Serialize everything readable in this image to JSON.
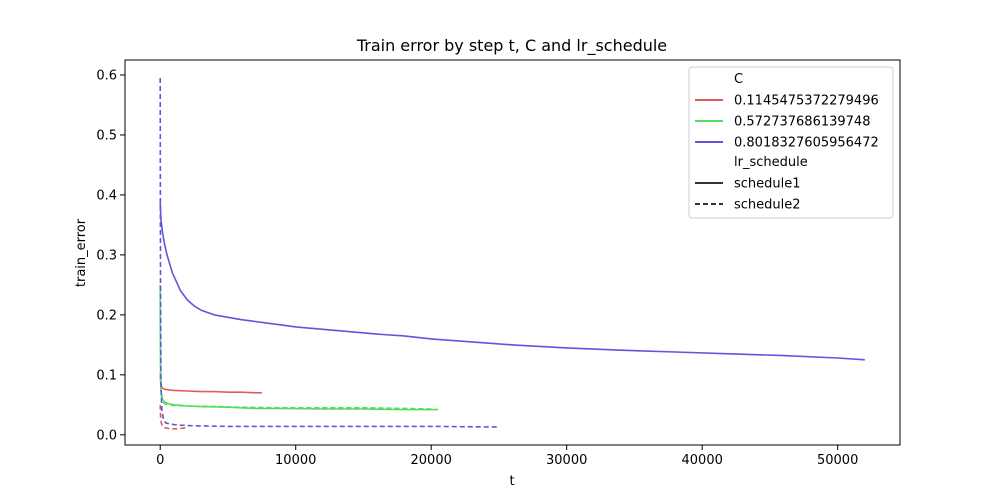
{
  "chart_data": {
    "type": "line",
    "title": "Train error by step t, C and lr_schedule",
    "xlabel": "t",
    "ylabel": "train_error",
    "xlim": [
      -2600,
      54600
    ],
    "ylim": [
      -0.017,
      0.625
    ],
    "x_ticks": [
      0,
      10000,
      20000,
      30000,
      40000,
      50000
    ],
    "y_ticks": [
      0.0,
      0.1,
      0.2,
      0.3,
      0.4,
      0.5,
      0.6
    ],
    "x_tick_labels": [
      "0",
      "10000",
      "20000",
      "30000",
      "40000",
      "50000"
    ],
    "y_tick_labels": [
      "0.0",
      "0.1",
      "0.2",
      "0.3",
      "0.4",
      "0.5",
      "0.6"
    ],
    "grid": false,
    "legend_placement": "top-right",
    "legend": {
      "hue_title": "C",
      "style_title": "lr_schedule",
      "hue_entries": [
        {
          "label": "0.1145475372279496",
          "color": "#db5f57"
        },
        {
          "label": "0.572737686139748",
          "color": "#57db5f"
        },
        {
          "label": "0.8018327605956472",
          "color": "#5f57db"
        }
      ],
      "style_entries": [
        {
          "label": "schedule1",
          "dash": "solid",
          "color": "#333333"
        },
        {
          "label": "schedule2",
          "dash": "dashed",
          "color": "#333333"
        }
      ]
    },
    "series": [
      {
        "C": "0.1145475372279496",
        "lr_schedule": "schedule1",
        "color": "#db5f57",
        "dash": "solid",
        "x": [
          0,
          30,
          80,
          150,
          300,
          600,
          1000,
          2000,
          3000,
          4000,
          5000,
          6000,
          7000,
          7500
        ],
        "y": [
          0.1,
          0.09,
          0.082,
          0.078,
          0.076,
          0.075,
          0.074,
          0.073,
          0.072,
          0.072,
          0.071,
          0.071,
          0.07,
          0.07
        ]
      },
      {
        "C": "0.1145475372279496",
        "lr_schedule": "schedule2",
        "color": "#db5f57",
        "dash": "dashed",
        "x": [
          0,
          30,
          80,
          150,
          300,
          500,
          800,
          1200,
          1700,
          2000
        ],
        "y": [
          0.05,
          0.03,
          0.02,
          0.015,
          0.012,
          0.011,
          0.01,
          0.01,
          0.011,
          0.013
        ]
      },
      {
        "C": "0.572737686139748",
        "lr_schedule": "schedule1",
        "color": "#57db5f",
        "dash": "solid",
        "x": [
          0,
          30,
          80,
          150,
          300,
          600,
          1000,
          2000,
          3000,
          5000,
          7000,
          9000,
          12000,
          15000,
          18000,
          20500
        ],
        "y": [
          0.25,
          0.1,
          0.07,
          0.06,
          0.055,
          0.052,
          0.05,
          0.048,
          0.047,
          0.046,
          0.044,
          0.044,
          0.043,
          0.043,
          0.042,
          0.042
        ]
      },
      {
        "C": "0.572737686139748",
        "lr_schedule": "schedule2",
        "color": "#57db5f",
        "dash": "dashed",
        "x": [
          0,
          30,
          80,
          150,
          300,
          600,
          1000,
          2000,
          4000,
          6000,
          9000,
          12000,
          15000,
          18000,
          20000
        ],
        "y": [
          0.2,
          0.09,
          0.065,
          0.055,
          0.052,
          0.05,
          0.049,
          0.048,
          0.047,
          0.046,
          0.045,
          0.045,
          0.045,
          0.044,
          0.043
        ]
      },
      {
        "C": "0.8018327605956472",
        "lr_schedule": "schedule1",
        "color": "#5f57db",
        "dash": "solid",
        "x": [
          0,
          50,
          150,
          300,
          500,
          700,
          900,
          1200,
          1500,
          2000,
          2500,
          3000,
          3500,
          4000,
          5000,
          6000,
          7000,
          8000,
          9000,
          10000,
          12000,
          14000,
          16000,
          18000,
          20000,
          23000,
          26000,
          30000,
          34000,
          38000,
          42000,
          46000,
          50000,
          52000
        ],
        "y": [
          0.39,
          0.36,
          0.34,
          0.32,
          0.3,
          0.285,
          0.27,
          0.255,
          0.24,
          0.225,
          0.215,
          0.208,
          0.204,
          0.2,
          0.196,
          0.192,
          0.189,
          0.186,
          0.183,
          0.18,
          0.176,
          0.172,
          0.168,
          0.165,
          0.16,
          0.155,
          0.15,
          0.145,
          0.141,
          0.138,
          0.135,
          0.132,
          0.128,
          0.125
        ]
      },
      {
        "C": "0.8018327605956472",
        "lr_schedule": "schedule2",
        "color": "#5f57db",
        "dash": "dashed",
        "x": [
          0,
          20,
          60,
          120,
          250,
          400,
          700,
          1000,
          1500,
          2500,
          5000,
          10000,
          15000,
          20000,
          25000
        ],
        "y": [
          0.595,
          0.25,
          0.08,
          0.04,
          0.025,
          0.02,
          0.018,
          0.017,
          0.016,
          0.015,
          0.014,
          0.014,
          0.014,
          0.014,
          0.013
        ]
      }
    ]
  }
}
